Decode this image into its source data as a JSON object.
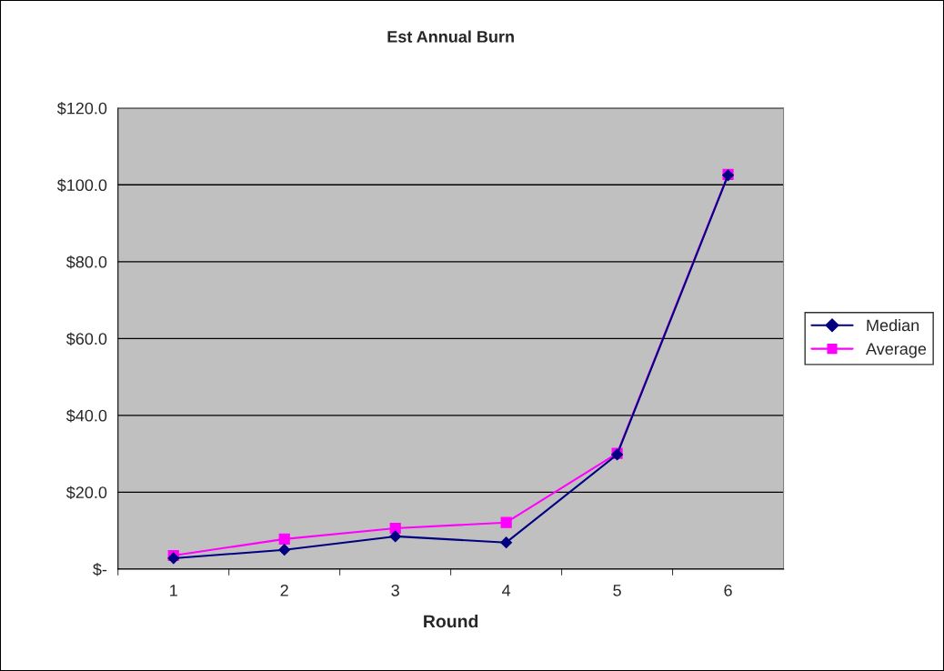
{
  "chart_data": {
    "type": "line",
    "title": "Est Annual Burn",
    "xlabel": "Round",
    "categories": [
      "1",
      "2",
      "3",
      "4",
      "5",
      "6"
    ],
    "series": [
      {
        "name": "Median",
        "color": "#000080",
        "marker": "diamond",
        "values": [
          2.8,
          5.0,
          8.5,
          6.9,
          29.8,
          102.5
        ]
      },
      {
        "name": "Average",
        "color": "#ff00ff",
        "marker": "square",
        "values": [
          3.5,
          7.8,
          10.6,
          12.1,
          30.1,
          102.7
        ]
      }
    ],
    "ylim": [
      0,
      120
    ],
    "yticks": [
      {
        "value": 0,
        "label": "$-"
      },
      {
        "value": 20,
        "label": "$20.0"
      },
      {
        "value": 40,
        "label": "$40.0"
      },
      {
        "value": 60,
        "label": "$60.0"
      },
      {
        "value": 80,
        "label": "$80.0"
      },
      {
        "value": 100,
        "label": "$100.0"
      },
      {
        "value": 120,
        "label": "$120.0"
      }
    ],
    "grid": "y",
    "legend": "right"
  }
}
